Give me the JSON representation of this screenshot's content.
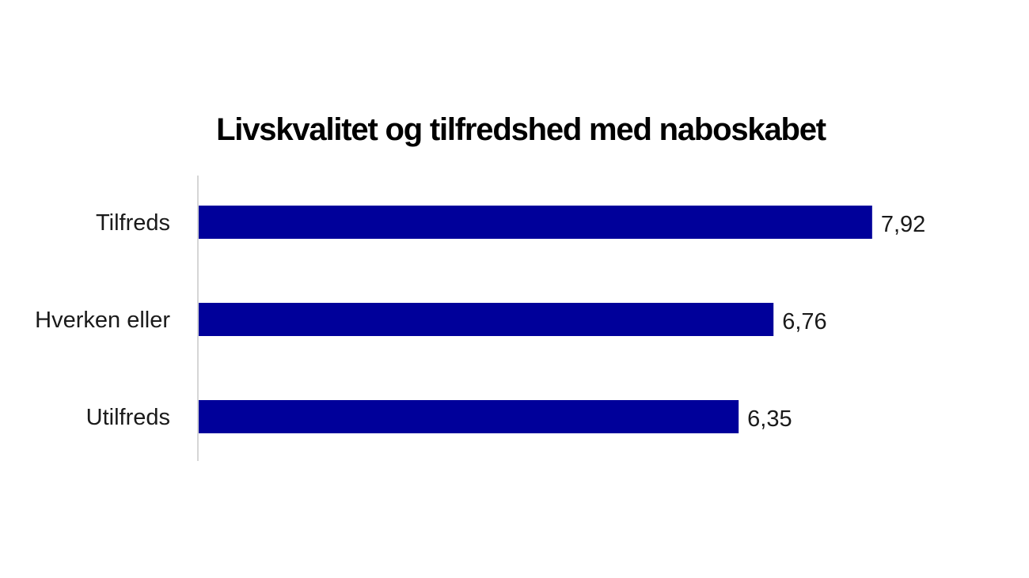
{
  "chart_data": {
    "type": "bar",
    "orientation": "horizontal",
    "title": "Livskvalitet og tilfredshed med naboskabet",
    "categories": [
      "Tilfreds",
      "Hverken eller",
      "Utilfreds"
    ],
    "values": [
      7.92,
      6.76,
      6.35
    ],
    "value_labels": [
      "7,92",
      "6,76",
      "6,35"
    ],
    "xlim": [
      0,
      8.75
    ],
    "bar_color": "#00009a",
    "axis_color": "#c8c8c8",
    "grid": false,
    "legend": "none"
  }
}
